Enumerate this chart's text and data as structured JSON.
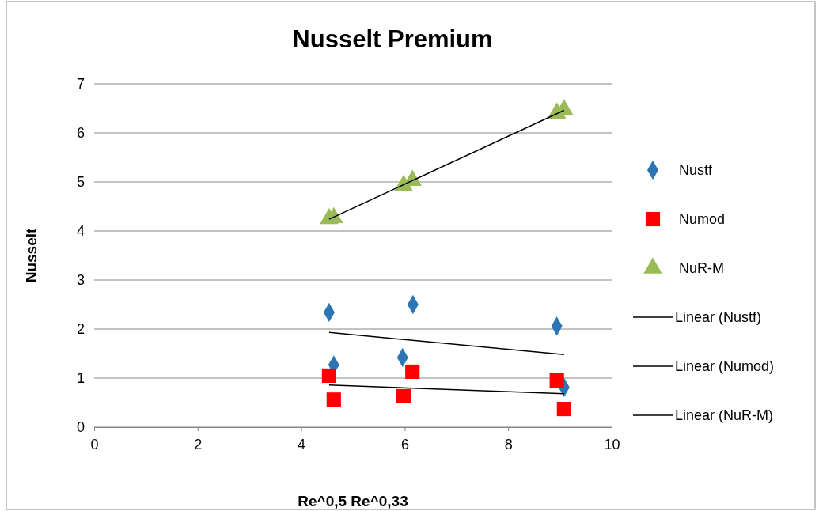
{
  "chart_data": {
    "type": "scatter",
    "title": "Nusselt Premium",
    "xlabel": "Re^0,5 Re^0,33",
    "ylabel": "Nusselt",
    "xlim": [
      0,
      10
    ],
    "xticks": [
      0,
      2,
      4,
      6,
      8,
      10
    ],
    "ylim": [
      0,
      7
    ],
    "yticks": [
      0,
      1,
      2,
      3,
      4,
      5,
      6,
      7
    ],
    "grid": "y",
    "legend": "right",
    "series": [
      {
        "name": "Nustf",
        "color": "#2e75b6",
        "marker": "diamond",
        "x": [
          4.54,
          4.63,
          5.96,
          6.16,
          8.94,
          9.08
        ],
        "values": [
          2.34,
          1.27,
          1.42,
          2.5,
          2.06,
          0.81
        ]
      },
      {
        "name": "Numod",
        "color": "#ff0000",
        "marker": "square",
        "x": [
          4.54,
          4.63,
          5.98,
          6.15,
          8.94,
          9.08
        ],
        "values": [
          1.05,
          0.56,
          0.63,
          1.13,
          0.95,
          0.37
        ]
      },
      {
        "name": "NuR-M",
        "color": "#9bbb59",
        "marker": "triangle",
        "x": [
          4.54,
          4.63,
          5.98,
          6.15,
          8.94,
          9.08
        ],
        "values": [
          4.25,
          4.27,
          4.93,
          5.03,
          6.4,
          6.47
        ]
      },
      {
        "name": "Linear (Nustf)",
        "type": "line",
        "color": "#000000",
        "marker": "none",
        "x": [
          4.54,
          9.08
        ],
        "values": [
          1.93,
          1.48
        ]
      },
      {
        "name": "Linear (Numod)",
        "type": "line",
        "color": "#000000",
        "marker": "none",
        "x": [
          4.54,
          9.08
        ],
        "values": [
          0.86,
          0.68
        ]
      },
      {
        "name": "Linear (NuR-M)",
        "type": "line",
        "color": "#000000",
        "marker": "none",
        "x": [
          4.54,
          9.08
        ],
        "values": [
          4.24,
          6.46
        ]
      }
    ]
  }
}
